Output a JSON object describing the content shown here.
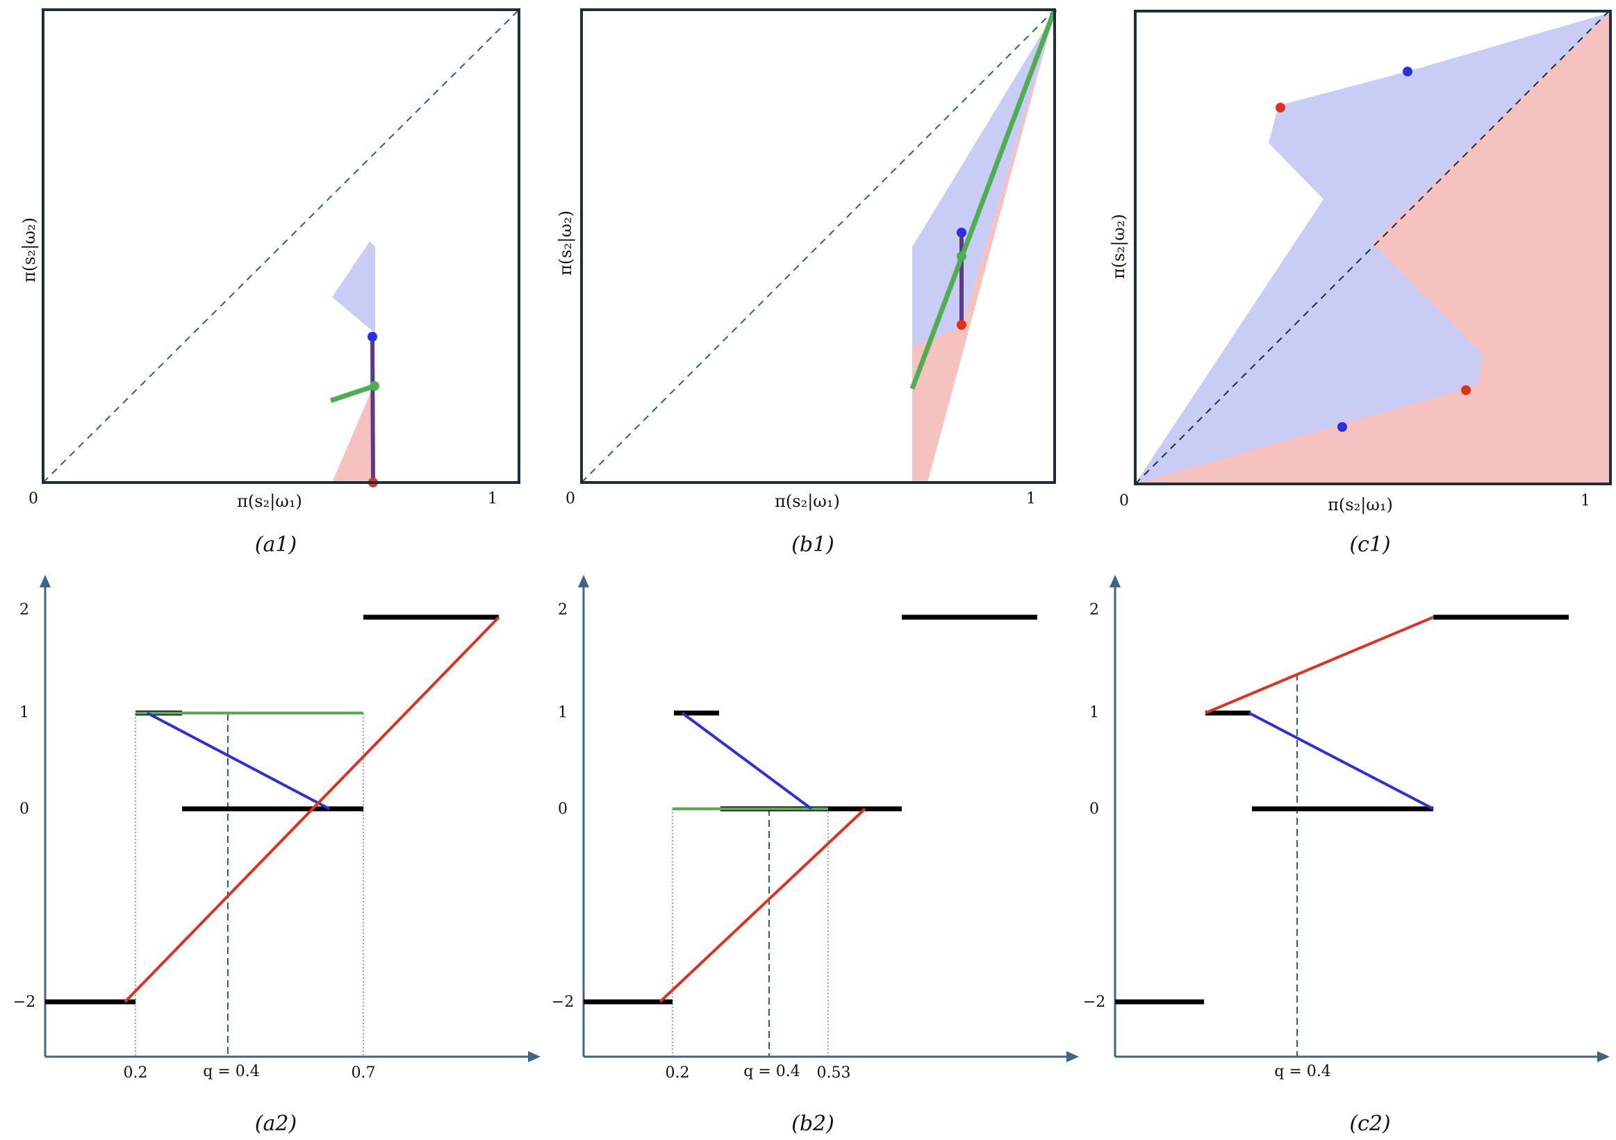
{
  "colors": {
    "blue_region": "#c9ccf5",
    "red_region": "#f5c2bf",
    "blue": "#2a2fe0",
    "red": "#e0301e",
    "green": "#4caf50",
    "purple": "#5b3a8c",
    "frame": "#1a2e3b",
    "axis": "#3b6784"
  },
  "top_panels": {
    "ylabel": "π(s₂|ω₂)",
    "xlabel": "π(s₂|ω₁)",
    "tick0": "0",
    "tick1": "1",
    "captions": [
      "(a1)",
      "(b1)",
      "(c1)"
    ]
  },
  "bottom_panels": {
    "ytick_2": "2",
    "ytick_1": "1",
    "ytick_0": "0",
    "ytick_m2": "−2",
    "captions": [
      "(a2)",
      "(b2)",
      "(c2)"
    ],
    "a2_xticks": {
      "t1": "0.2",
      "t2": "q = 0.4",
      "t3": "0.7"
    },
    "b2_xticks": {
      "t1": "0.2",
      "t2": "q = 0.4",
      "t3": "0.53"
    },
    "c2_xticks": {
      "t1": "q = 0.4"
    }
  }
}
